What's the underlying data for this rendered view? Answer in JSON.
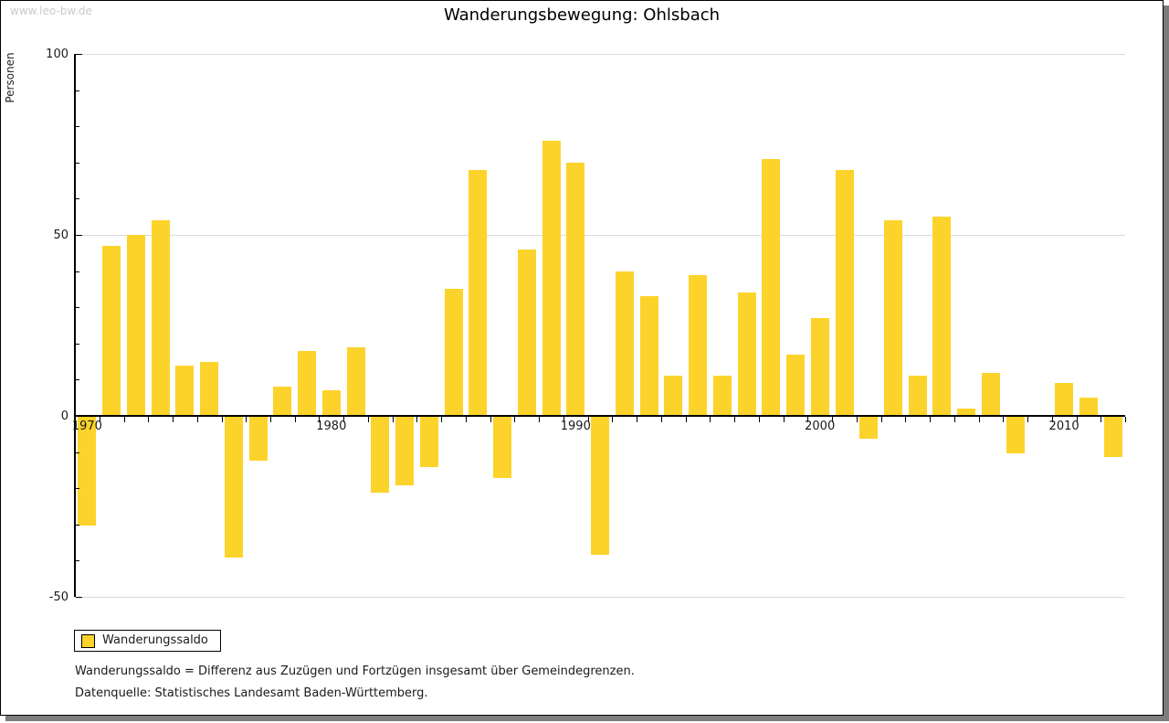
{
  "watermark": "www.leo-bw.de",
  "title": "Wanderungsbewegung: Ohlsbach",
  "y_axis_title": "Personen",
  "legend": {
    "label": "Wanderungssaldo"
  },
  "footnotes": [
    "Wanderungssaldo = Differenz aus Zuzügen und Fortzügen insgesamt über Gemeindegrenzen.",
    "Datenquelle: Statistisches Landesamt Baden-Württemberg."
  ],
  "colors": {
    "bar": "#fcd32a",
    "grid": "#dcdcdc",
    "axis": "#000000",
    "watermark": "#c9c9c9",
    "frame_shadow": "#7d7d7d"
  },
  "chart_data": {
    "type": "bar",
    "title": "Wanderungsbewegung: Ohlsbach",
    "xlabel": "",
    "ylabel": "Personen",
    "series_name": "Wanderungssaldo",
    "x": [
      1970,
      1971,
      1972,
      1973,
      1974,
      1975,
      1976,
      1977,
      1978,
      1979,
      1980,
      1981,
      1982,
      1983,
      1984,
      1985,
      1986,
      1987,
      1988,
      1989,
      1990,
      1991,
      1992,
      1993,
      1994,
      1995,
      1996,
      1997,
      1998,
      1999,
      2000,
      2001,
      2002,
      2003,
      2004,
      2005,
      2006,
      2007,
      2008,
      2009,
      2010,
      2011,
      2012
    ],
    "values": [
      -30,
      47,
      50,
      54,
      14,
      15,
      -39,
      -12,
      8,
      18,
      7,
      19,
      -21,
      -19,
      -14,
      35,
      68,
      -17,
      46,
      76,
      70,
      -38,
      40,
      33,
      11,
      39,
      11,
      34,
      71,
      17,
      27,
      68,
      -6,
      54,
      11,
      55,
      2,
      12,
      -10,
      0,
      9,
      5,
      -11
    ],
    "ylim": [
      -50,
      100
    ],
    "y_major_ticks": [
      100,
      50,
      0,
      -50
    ],
    "y_minor_tick_step": 10,
    "x_labeled_ticks": [
      1970,
      1980,
      1990,
      2000,
      2010
    ],
    "gridlines_at": [
      100,
      50,
      -50
    ],
    "grid": "horizontal-light",
    "legend_position": "bottom-left",
    "bar_color": "#fcd32a"
  }
}
